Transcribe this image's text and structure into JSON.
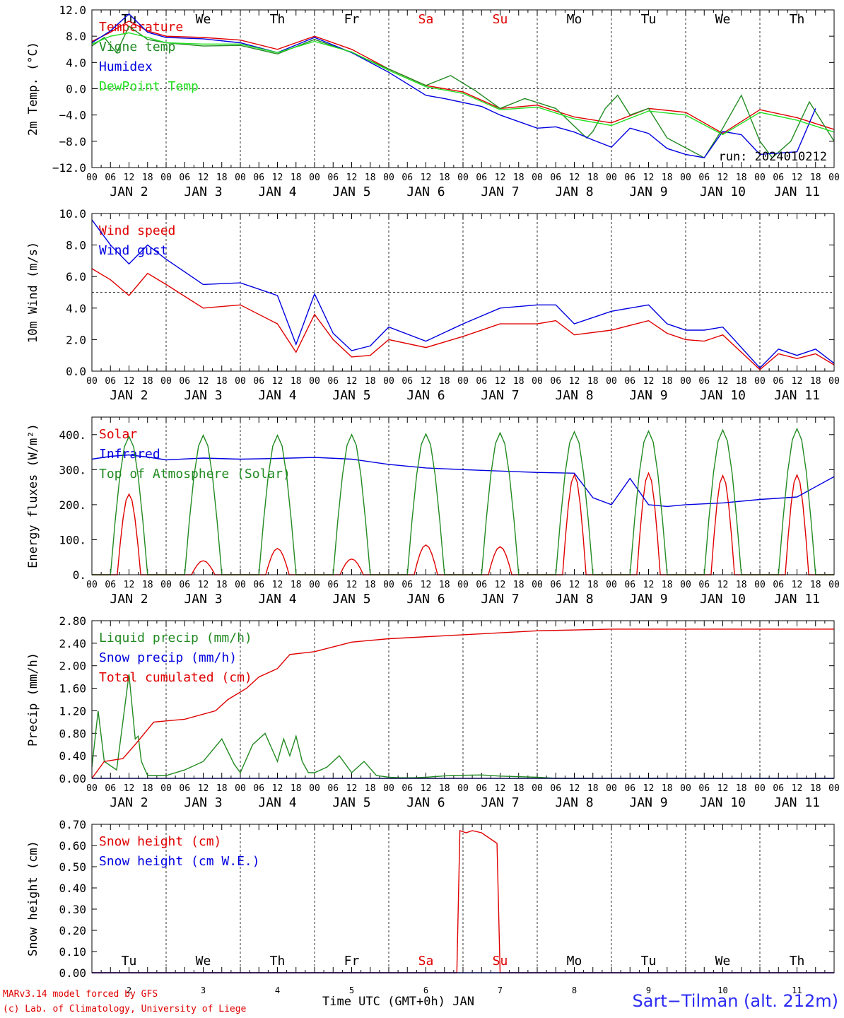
{
  "run_label": "run: 2024010212",
  "x_title": "Time UTC (GMT+0h) JAN",
  "footer": {
    "model": "MARv3.14 model forced by GFS",
    "lab": "(c) Lab. of Climatology, University of Liege",
    "station": "Sart−Tilman (alt. 212m)"
  },
  "colors": {
    "red": "#e00000",
    "green": "#228b22",
    "blue": "#0000e0",
    "lightgreen": "#22e022",
    "weekend": "#e00000"
  },
  "days": [
    {
      "dow": "Tu",
      "date": "JAN  2",
      "num": "2",
      "weekend": false
    },
    {
      "dow": "We",
      "date": "JAN  3",
      "num": "3",
      "weekend": false
    },
    {
      "dow": "Th",
      "date": "JAN  4",
      "num": "4",
      "weekend": false
    },
    {
      "dow": "Fr",
      "date": "JAN  5",
      "num": "5",
      "weekend": false
    },
    {
      "dow": "Sa",
      "date": "JAN  6",
      "num": "6",
      "weekend": true
    },
    {
      "dow": "Su",
      "date": "JAN  7",
      "num": "7",
      "weekend": true
    },
    {
      "dow": "Mo",
      "date": "JAN  8",
      "num": "8",
      "weekend": false
    },
    {
      "dow": "Tu",
      "date": "JAN  9",
      "num": "9",
      "weekend": false
    },
    {
      "dow": "We",
      "date": "JAN 10",
      "num": "10",
      "weekend": false
    },
    {
      "dow": "Th",
      "date": "JAN 11",
      "num": "11",
      "weekend": false
    }
  ],
  "hour_ticks": [
    "00",
    "06",
    "12",
    "18"
  ],
  "chart_data": [
    {
      "type": "line",
      "ylabel": "2m Temp. (°C)",
      "ylim": [
        -12,
        12
      ],
      "yticks": [
        "−12.0",
        "−8.0",
        "−4.0",
        "0.0",
        "4.0",
        "8.0",
        "12.0"
      ],
      "ytick_values": [
        -12,
        -8,
        -4,
        0,
        4,
        8,
        12
      ],
      "reference_line": 0,
      "x_unit": "hours since JAN 2 00 UTC",
      "series": [
        {
          "name": "Temperature",
          "color": "red",
          "x": [
            0,
            6,
            12,
            18,
            24,
            36,
            48,
            60,
            72,
            84,
            96,
            108,
            120,
            132,
            144,
            156,
            168,
            180,
            192,
            204,
            216,
            228,
            240
          ],
          "y": [
            7.2,
            8.6,
            10.3,
            8.8,
            8.0,
            7.8,
            7.4,
            6.0,
            8.0,
            6.0,
            3.0,
            0.5,
            -0.5,
            -3.0,
            -2.5,
            -4.3,
            -5.2,
            -3.0,
            -3.6,
            -6.8,
            -3.2,
            -4.4,
            -6.2
          ]
        },
        {
          "name": "Vigne temp",
          "color": "green",
          "x": [
            0,
            4,
            8,
            12,
            18,
            24,
            36,
            48,
            60,
            72,
            84,
            96,
            108,
            116,
            124,
            132,
            140,
            150,
            160,
            162,
            166,
            170,
            174,
            180,
            186,
            190,
            198,
            204,
            210,
            216,
            220,
            226,
            232,
            240
          ],
          "y": [
            6.5,
            7.8,
            5.5,
            9.5,
            7.5,
            7.0,
            6.5,
            6.6,
            5.3,
            7.5,
            5.5,
            3.0,
            0.5,
            2.0,
            -0.3,
            -3.0,
            -1.5,
            -3.0,
            -7.5,
            -6.5,
            -3.0,
            -1.0,
            -4.0,
            -3.0,
            -7.5,
            -8.5,
            -10.5,
            -6.0,
            -1.0,
            -8.0,
            -10.5,
            -8.0,
            -2.0,
            -8.0
          ]
        },
        {
          "name": "Humidex",
          "color": "blue",
          "x": [
            0,
            6,
            12,
            18,
            24,
            36,
            48,
            60,
            72,
            84,
            96,
            108,
            114,
            126,
            132,
            144,
            150,
            156,
            162,
            168,
            174,
            180,
            186,
            192,
            198,
            204,
            210,
            216,
            222,
            228,
            234
          ],
          "y": [
            7.0,
            8.8,
            11.4,
            8.6,
            7.8,
            7.6,
            7.0,
            5.5,
            7.8,
            5.5,
            2.5,
            -1.0,
            -1.5,
            -2.7,
            -4.0,
            -6.0,
            -5.8,
            -6.6,
            -7.8,
            -8.9,
            -6.0,
            -6.8,
            -9.1,
            -10.0,
            -10.5,
            -6.5,
            -7.0,
            -10.0,
            -9.8,
            -9.6,
            -3.0
          ]
        },
        {
          "name": "DewPoint Temp",
          "color": "lightgreen",
          "x": [
            0,
            6,
            12,
            18,
            24,
            36,
            48,
            60,
            72,
            84,
            96,
            108,
            120,
            132,
            144,
            156,
            168,
            180,
            192,
            204,
            216,
            228,
            240
          ],
          "y": [
            6.8,
            8.0,
            8.5,
            7.8,
            7.0,
            6.8,
            6.8,
            5.5,
            7.2,
            5.6,
            2.8,
            0.3,
            -0.7,
            -3.2,
            -2.8,
            -4.6,
            -5.6,
            -3.4,
            -4.0,
            -7.0,
            -3.6,
            -4.8,
            -6.6
          ]
        }
      ]
    },
    {
      "type": "line",
      "ylabel": "10m Wind (m/s)",
      "ylim": [
        0,
        10
      ],
      "yticks": [
        "0.0",
        "2.0",
        "4.0",
        "6.0",
        "8.0",
        "10.0"
      ],
      "ytick_values": [
        0,
        2,
        4,
        6,
        8,
        10
      ],
      "reference_line": 5,
      "x_unit": "hours since JAN 2 00 UTC",
      "series": [
        {
          "name": "Wind speed",
          "color": "red",
          "x": [
            0,
            6,
            12,
            18,
            24,
            36,
            48,
            60,
            66,
            72,
            78,
            84,
            90,
            96,
            108,
            120,
            132,
            144,
            150,
            156,
            168,
            180,
            186,
            192,
            198,
            204,
            216,
            222,
            228,
            234,
            240
          ],
          "y": [
            6.5,
            5.8,
            4.8,
            6.2,
            5.5,
            4.0,
            4.2,
            3.0,
            1.2,
            3.6,
            2.0,
            0.9,
            1.0,
            2.0,
            1.5,
            2.2,
            3.0,
            3.0,
            3.2,
            2.3,
            2.6,
            3.2,
            2.4,
            2.0,
            1.9,
            2.3,
            0.1,
            1.1,
            0.8,
            1.1,
            0.4
          ]
        },
        {
          "name": "Wind gust",
          "color": "blue",
          "x": [
            0,
            6,
            12,
            18,
            24,
            36,
            48,
            60,
            66,
            72,
            78,
            84,
            90,
            96,
            108,
            120,
            132,
            144,
            150,
            156,
            168,
            180,
            186,
            192,
            198,
            204,
            216,
            222,
            228,
            234,
            240
          ],
          "y": [
            9.6,
            8.0,
            6.8,
            8.0,
            7.1,
            5.5,
            5.6,
            4.8,
            1.7,
            4.9,
            2.4,
            1.3,
            1.6,
            2.8,
            1.9,
            3.0,
            4.0,
            4.2,
            4.2,
            3.0,
            3.8,
            4.2,
            3.0,
            2.6,
            2.6,
            2.8,
            0.2,
            1.4,
            1.0,
            1.4,
            0.5
          ]
        }
      ]
    },
    {
      "type": "line",
      "ylabel": "Energy fluxes (W/m²)",
      "ylim": [
        0,
        450
      ],
      "yticks": [
        "0.",
        "100.",
        "200.",
        "300.",
        "400."
      ],
      "ytick_values": [
        0,
        100,
        200,
        300,
        400
      ],
      "x_unit": "hours since JAN 2 00 UTC",
      "series": [
        {
          "name": "Solar",
          "color": "red",
          "peaks": [
            230,
            40,
            75,
            45,
            85,
            80,
            285,
            290,
            283,
            285
          ]
        },
        {
          "name": "Infrared",
          "color": "blue",
          "x": [
            0,
            6,
            12,
            18,
            24,
            36,
            48,
            60,
            72,
            84,
            96,
            108,
            120,
            132,
            144,
            156,
            162,
            168,
            174,
            180,
            186,
            192,
            204,
            216,
            228,
            240
          ],
          "y": [
            330,
            338,
            342,
            336,
            328,
            333,
            330,
            332,
            335,
            330,
            315,
            305,
            300,
            296,
            292,
            290,
            220,
            200,
            275,
            200,
            195,
            200,
            205,
            215,
            222,
            280
          ]
        },
        {
          "name": "Top of Atmosphere (Solar)",
          "color": "green",
          "peaks": [
            395,
            398,
            398,
            400,
            402,
            405,
            408,
            410,
            413,
            417
          ]
        }
      ]
    },
    {
      "type": "line",
      "ylabel": "Precip (mm/h)",
      "ylim": [
        0,
        2.8
      ],
      "yticks": [
        "0.00",
        "0.40",
        "0.80",
        "1.20",
        "1.60",
        "2.00",
        "2.40",
        "2.80"
      ],
      "ytick_values": [
        0,
        0.4,
        0.8,
        1.2,
        1.6,
        2.0,
        2.4,
        2.8
      ],
      "x_unit": "hours since JAN 2 00 UTC",
      "series": [
        {
          "name": "Liquid precip (mm/h)",
          "color": "green",
          "x": [
            0,
            2,
            4,
            8,
            12,
            14,
            15,
            16,
            18,
            22,
            24,
            30,
            36,
            42,
            46,
            48,
            52,
            56,
            60,
            62,
            64,
            66,
            68,
            70,
            72,
            76,
            80,
            84,
            88,
            92,
            96,
            100,
            104,
            108,
            116,
            126,
            132,
            144,
            150,
            168,
            240
          ],
          "y": [
            0.2,
            1.2,
            0.3,
            0.15,
            1.85,
            0.7,
            0.75,
            0.3,
            0.05,
            0.05,
            0.05,
            0.15,
            0.3,
            0.7,
            0.25,
            0.1,
            0.6,
            0.8,
            0.3,
            0.7,
            0.4,
            0.75,
            0.3,
            0.1,
            0.1,
            0.2,
            0.4,
            0.1,
            0.3,
            0.05,
            0.02,
            0.01,
            0.01,
            0.02,
            0.05,
            0.06,
            0.04,
            0.02,
            0.0,
            0.0,
            0.0
          ]
        },
        {
          "name": "Snow precip (mm/h)",
          "color": "blue",
          "x": [
            0,
            240
          ],
          "y": [
            0.0,
            0.0
          ]
        },
        {
          "name": "Total cumulated (cm)",
          "color": "red",
          "x": [
            0,
            4,
            10,
            14,
            20,
            30,
            40,
            44,
            50,
            54,
            60,
            64,
            72,
            84,
            96,
            120,
            144,
            168,
            240
          ],
          "y": [
            0.0,
            0.3,
            0.35,
            0.6,
            1.0,
            1.05,
            1.2,
            1.4,
            1.6,
            1.8,
            1.95,
            2.2,
            2.25,
            2.42,
            2.48,
            2.55,
            2.62,
            2.65,
            2.65
          ]
        }
      ]
    },
    {
      "type": "line",
      "ylabel": "Snow height (cm)",
      "ylim": [
        0,
        0.7
      ],
      "yticks": [
        "0.00",
        "0.10",
        "0.20",
        "0.30",
        "0.40",
        "0.50",
        "0.60",
        "0.70"
      ],
      "ytick_values": [
        0,
        0.1,
        0.2,
        0.3,
        0.4,
        0.5,
        0.6,
        0.7
      ],
      "x_unit": "hours since JAN 2 00 UTC",
      "series": [
        {
          "name": "Snow height (cm)",
          "color": "red",
          "x": [
            0,
            118,
            119,
            121,
            123,
            126,
            130,
            131,
            132,
            240
          ],
          "y": [
            0,
            0,
            0.67,
            0.66,
            0.67,
            0.66,
            0.62,
            0.61,
            0,
            0
          ]
        },
        {
          "name": "Snow height (cm W.E.)",
          "color": "blue",
          "x": [
            0,
            240
          ],
          "y": [
            0,
            0
          ]
        }
      ]
    }
  ]
}
